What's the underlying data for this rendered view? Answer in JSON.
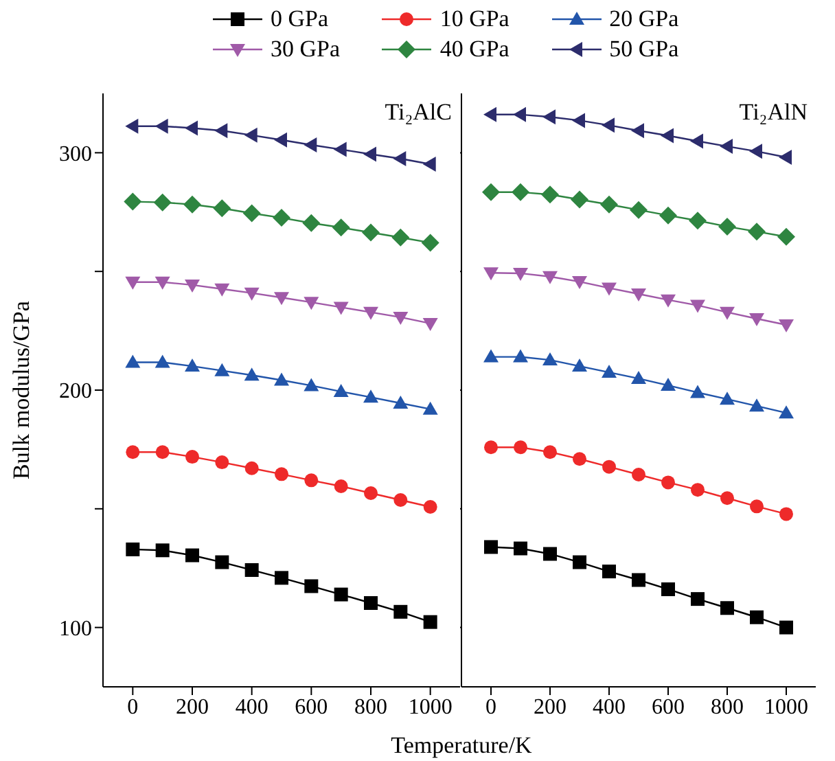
{
  "chart_data": [
    {
      "type": "line",
      "annotations": [
        "Ti₂AlC"
      ],
      "xlabel": "Temperature/K",
      "ylabel": "Bulk modulus/GPa",
      "x": [
        0,
        100,
        200,
        300,
        400,
        500,
        600,
        700,
        800,
        900,
        1000
      ],
      "xlim": [
        -100,
        1100
      ],
      "xticks": [
        0,
        200,
        400,
        600,
        800,
        1000
      ],
      "ylim": [
        75,
        325
      ],
      "yticks": [
        100,
        {
          "value": 150,
          "label": null
        },
        200,
        {
          "value": 250,
          "label": null
        },
        300
      ],
      "legend": "top",
      "series": [
        {
          "name": "0 GPa",
          "color": "#000000",
          "marker": "square",
          "values": [
            132.9,
            132.5,
            130.4,
            127.5,
            124.2,
            120.9,
            117.4,
            113.9,
            110.3,
            106.6,
            102.3
          ]
        },
        {
          "name": "10 GPa",
          "color": "#ee2a2a",
          "marker": "circle",
          "values": [
            173.9,
            173.9,
            171.9,
            169.6,
            167.1,
            164.6,
            162.0,
            159.5,
            156.6,
            153.7,
            150.8
          ]
        },
        {
          "name": "20 GPa",
          "color": "#2255aa",
          "marker": "triangle",
          "values": [
            211.7,
            211.7,
            210.1,
            208.2,
            206.3,
            204.2,
            201.9,
            199.4,
            197.0,
            194.5,
            192.0
          ]
        },
        {
          "name": "30 GPa",
          "color": "#a05aa8",
          "marker": "triangle-down",
          "values": [
            245.5,
            245.5,
            244.3,
            242.6,
            240.9,
            239.0,
            237.0,
            234.9,
            232.8,
            230.7,
            228.1
          ]
        },
        {
          "name": "40 GPa",
          "color": "#2e8540",
          "marker": "diamond",
          "values": [
            279.4,
            279.1,
            278.2,
            276.6,
            274.5,
            272.6,
            270.4,
            268.5,
            266.4,
            264.3,
            262.1
          ]
        },
        {
          "name": "50 GPa",
          "color": "#2c2c6c",
          "marker": "triangle-left",
          "values": [
            311.2,
            311.2,
            310.4,
            309.3,
            307.4,
            305.4,
            303.3,
            301.4,
            299.4,
            297.5,
            295.2
          ]
        }
      ]
    },
    {
      "type": "line",
      "annotations": [
        "Ti₂AlN"
      ],
      "x": [
        0,
        100,
        200,
        300,
        400,
        500,
        600,
        700,
        800,
        900,
        1000
      ],
      "xlim": [
        -100,
        1100
      ],
      "xticks": [
        0,
        200,
        400,
        600,
        800,
        1000
      ],
      "ylim": [
        75,
        325
      ],
      "yticks": [
        {
          "value": 100,
          "label": null
        },
        {
          "value": 150,
          "label": null
        },
        {
          "value": 200,
          "label": null
        },
        {
          "value": 250,
          "label": null
        },
        {
          "value": 300,
          "label": null
        }
      ],
      "tick_labels": "x",
      "series": [
        {
          "color": "#000000",
          "marker": "square",
          "values": [
            133.9,
            133.3,
            131.0,
            127.5,
            123.6,
            120.0,
            116.1,
            112.0,
            108.2,
            104.3,
            100.0
          ]
        },
        {
          "color": "#ee2a2a",
          "marker": "circle",
          "values": [
            175.9,
            175.9,
            173.9,
            171.0,
            167.7,
            164.4,
            161.1,
            158.0,
            154.5,
            151.0,
            147.8
          ]
        },
        {
          "color": "#2255aa",
          "marker": "triangle",
          "values": [
            214.0,
            214.0,
            212.7,
            210.1,
            207.5,
            204.9,
            202.0,
            199.0,
            196.2,
            193.3,
            190.4
          ]
        },
        {
          "color": "#a05aa8",
          "marker": "triangle-down",
          "values": [
            249.4,
            249.2,
            247.8,
            245.7,
            243.0,
            240.5,
            238.0,
            235.7,
            232.8,
            230.1,
            227.5
          ]
        },
        {
          "color": "#2e8540",
          "marker": "diamond",
          "values": [
            283.4,
            283.4,
            282.4,
            280.3,
            278.2,
            275.9,
            273.6,
            271.4,
            268.9,
            266.8,
            264.6
          ]
        },
        {
          "color": "#2c2c6c",
          "marker": "triangle-left",
          "values": [
            316.1,
            316.1,
            315.1,
            313.6,
            311.6,
            309.3,
            307.2,
            304.9,
            302.7,
            300.6,
            298.1
          ]
        }
      ]
    }
  ]
}
